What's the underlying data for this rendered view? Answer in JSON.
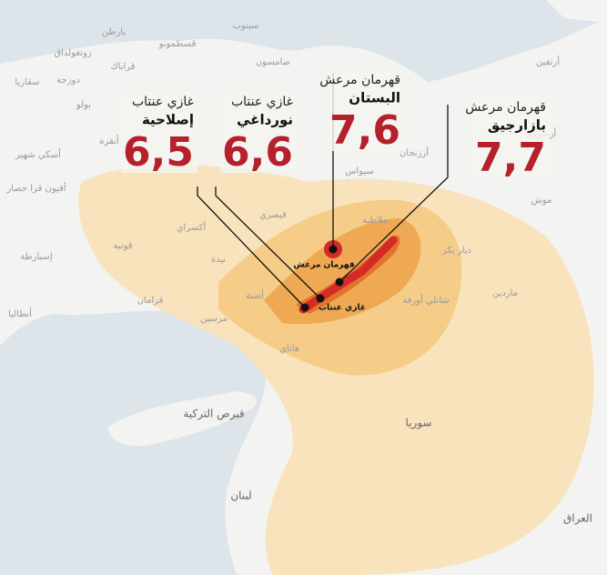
{
  "callouts": [
    {
      "city": "غازي عنتاب",
      "district": "إصلاحية",
      "magnitude": "6,5"
    },
    {
      "city": "غازي عنتاب",
      "district": "نورداغي",
      "magnitude": "6,6"
    },
    {
      "city": "قهرمان مرعش",
      "district": "البستان",
      "magnitude": "7,6"
    },
    {
      "city": "قهرمان مرعش",
      "district": "بازارجيق",
      "magnitude": "7,7"
    }
  ],
  "epicenter_labels": [
    "قهرمان مرعش",
    "غازي عنتاب"
  ],
  "places": [
    "بارطن",
    "قسطمونو",
    "سينوب",
    "زونغولداق",
    "قراباك",
    "صامسون",
    "سقاريا",
    "دوزجة",
    "بولو",
    "أنقرة",
    "أرزنجان",
    "أرضروم",
    "أسكي شهير",
    "سيواس",
    "أفيون قرا حصار",
    "قيصري",
    "ملاطية",
    "أكسراي",
    "نيدة",
    "قونية",
    "إسبارطة",
    "قرامان",
    "أضنة",
    "مرسين",
    "أنطاليا",
    "هاتاي",
    "ديار بكر",
    "ماردين",
    "شانلي أورفة",
    "موش",
    "أرتفين"
  ],
  "countries": [
    "قبرص التركية",
    "سوريا",
    "لبنان",
    "العراق"
  ]
}
